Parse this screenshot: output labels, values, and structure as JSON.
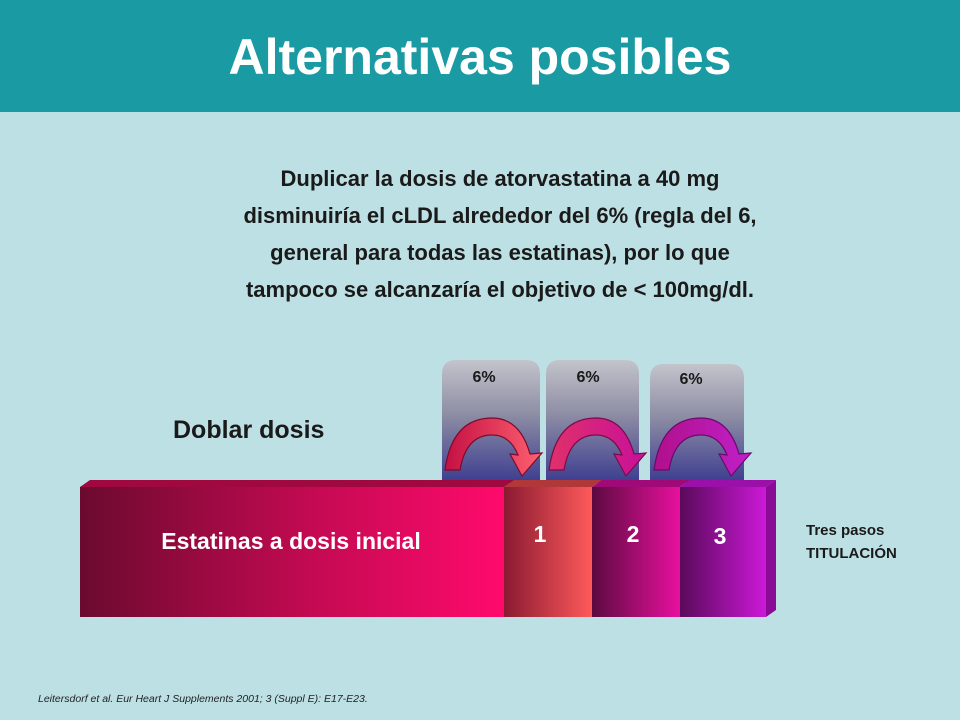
{
  "slide": {
    "title": "Alternativas posibles",
    "body_lines": [
      "Duplicar la dosis de atorvastatina a 40 mg",
      "disminuiría el cLDL alrededor del 6% (regla del 6,",
      "general para todas las estatinas), por lo que",
      "tampoco se alcanzaría el objetivo de < 100mg/dl."
    ],
    "citation": "Leitersdorf et al. Eur Heart J Supplements 2001; 3 (Suppl E): E17-E23."
  },
  "diagram": {
    "heading": "Doblar dosis",
    "base_label": "Estatinas a dosis inicial",
    "steps": [
      {
        "label": "1",
        "pct": "6%"
      },
      {
        "label": "2",
        "pct": "6%"
      },
      {
        "label": "3",
        "pct": "6%"
      }
    ],
    "side_note": [
      "Tres pasos",
      "TITULACIÓN"
    ]
  },
  "colors": {
    "header": "#1a9aa2",
    "background": "#bde0e4",
    "base_dark": "#6b0a2e",
    "base_bright": "#ff0a6c",
    "step1": "#ff5050",
    "step2": "#e0109a",
    "step3": "#c418d0"
  }
}
